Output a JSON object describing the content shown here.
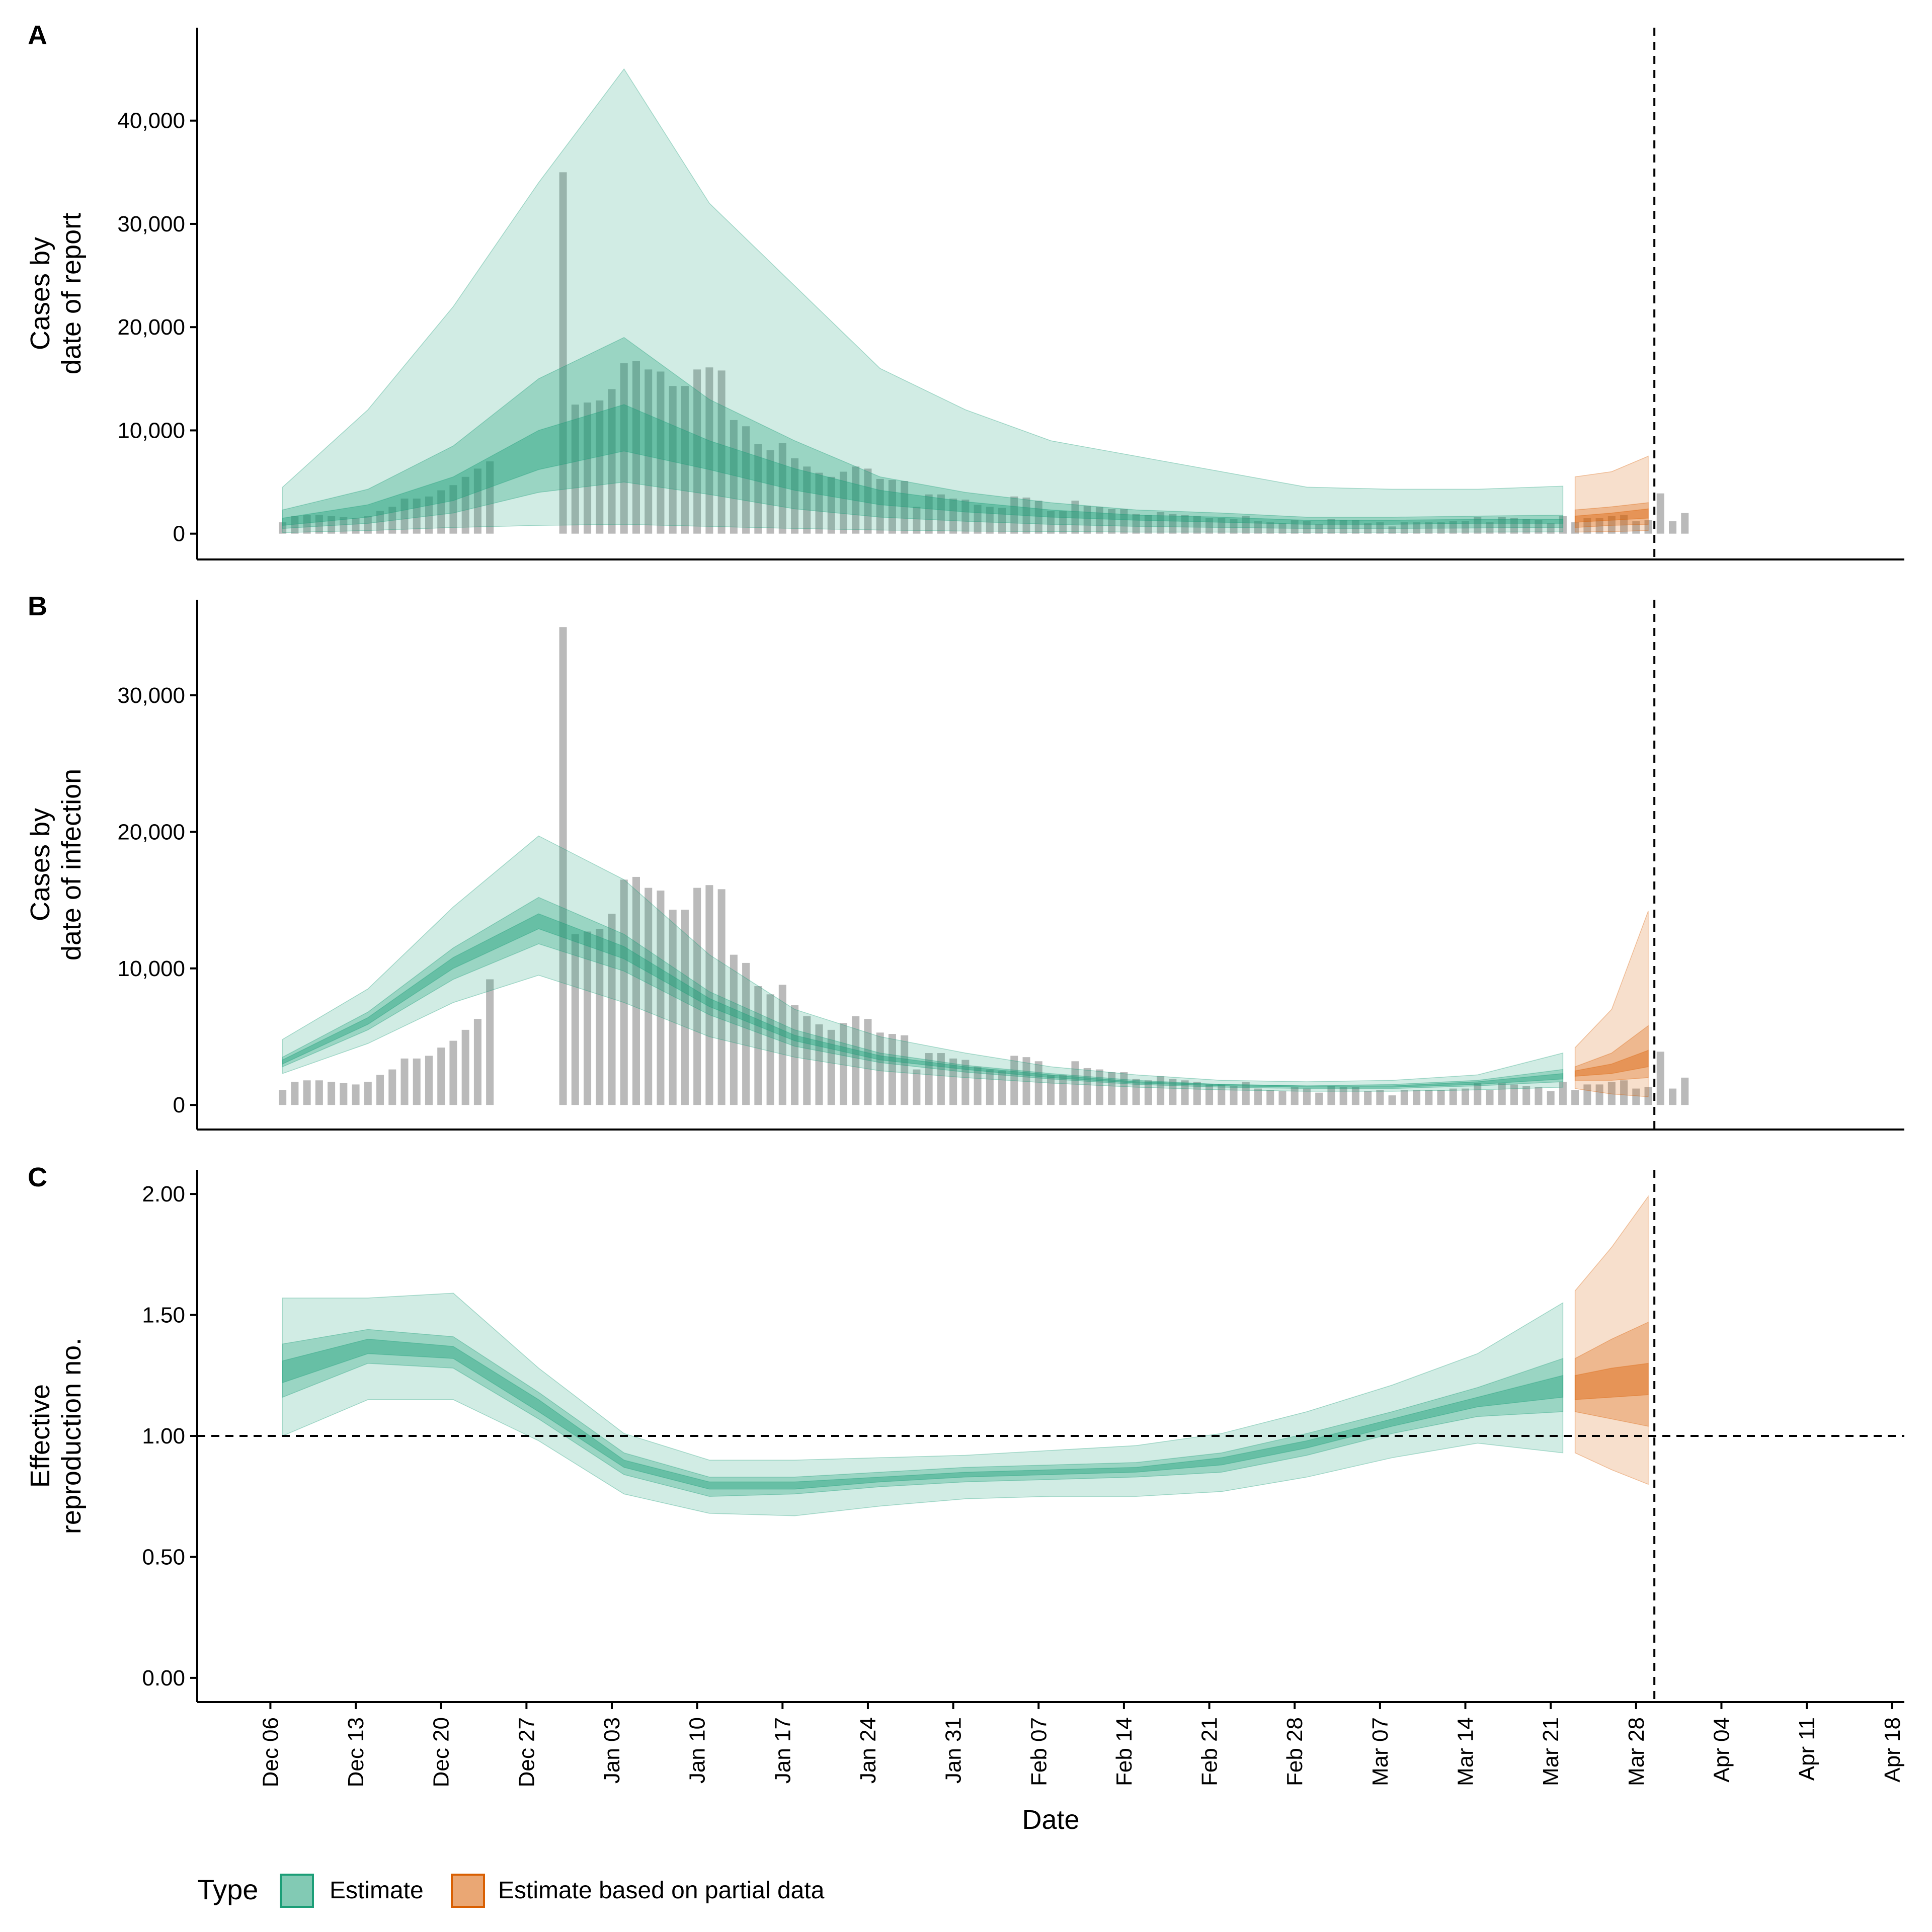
{
  "chart_data": {
    "type": "area",
    "x_axis": {
      "title": "Date",
      "tick_labels": [
        "Dec 06",
        "Dec 13",
        "Dec 20",
        "Dec 27",
        "Jan 03",
        "Jan 10",
        "Jan 17",
        "Jan 24",
        "Jan 31",
        "Feb 07",
        "Feb 14",
        "Feb 21",
        "Feb 28",
        "Mar 07",
        "Mar 14",
        "Mar 21",
        "Mar 28",
        "Apr 04",
        "Apr 11",
        "Apr 18"
      ],
      "range": [
        "Nov 30",
        "Apr 18"
      ],
      "forecast_marker": "Mar 28"
    },
    "legend": {
      "title": "Type",
      "position": "bottom-left",
      "entries": [
        {
          "label": "Estimate",
          "color": "#1b9e77"
        },
        {
          "label": "Estimate based on partial data",
          "color": "#d95f02"
        }
      ]
    },
    "colors": {
      "estimate": "#1b9e77",
      "partial": "#d95f02",
      "bars": "#a0a0a0"
    },
    "panels": [
      {
        "tag": "A",
        "ylabel": [
          "Cases by",
          "date of report"
        ],
        "ylim": [
          -2500,
          49000
        ],
        "y_ticks": [
          0,
          10000,
          20000,
          30000,
          40000
        ],
        "y_tick_labels": [
          "0",
          "10,000",
          "20,000",
          "30,000",
          "40,000"
        ],
        "bar_start_day": 7,
        "bars": [
          1100,
          1700,
          1800,
          1800,
          1700,
          1600,
          1500,
          1700,
          2200,
          2600,
          3400,
          3400,
          3600,
          4200,
          4700,
          5500,
          6300,
          7000,
          null,
          null,
          null,
          null,
          null,
          35000,
          12500,
          12700,
          12900,
          14000,
          16500,
          16700,
          15900,
          15700,
          14300,
          14300,
          15900,
          16100,
          15800,
          11000,
          10400,
          8700,
          8100,
          8800,
          7300,
          6500,
          5900,
          5500,
          6000,
          6500,
          6300,
          5300,
          5200,
          5100,
          2600,
          3800,
          3800,
          3400,
          3300,
          2800,
          2600,
          2500,
          3600,
          3500,
          3200,
          2200,
          2200,
          3200,
          2700,
          2600,
          2400,
          2400,
          1900,
          1800,
          2100,
          1900,
          1800,
          1700,
          1500,
          1500,
          1400,
          1700,
          1200,
          1100,
          1000,
          1300,
          1200,
          900,
          1400,
          1300,
          1300,
          1000,
          1100,
          700,
          1100,
          1100,
          1100,
          1100,
          1200,
          1200,
          1600,
          1100,
          1600,
          1500,
          1400,
          1300,
          1000,
          1700,
          1100,
          1500,
          1500,
          1700,
          1800,
          1200,
          1300,
          3900,
          1200,
          2000
        ],
        "estimate_days": [
          7,
          112
        ],
        "estimate_band_90": {
          "days": [
            7,
            14,
            21,
            28,
            35,
            42,
            49,
            56,
            63,
            70,
            77,
            84,
            91,
            98,
            105,
            112
          ],
          "lower": [
            100,
            300,
            600,
            800,
            900,
            700,
            500,
            350,
            250,
            200,
            150,
            150,
            130,
            130,
            150,
            170
          ],
          "upper": [
            4500,
            12000,
            22000,
            34000,
            45000,
            32000,
            24000,
            16000,
            12000,
            9000,
            7500,
            6000,
            4500,
            4300,
            4300,
            4600
          ]
        },
        "estimate_band_50": {
          "days": [
            7,
            14,
            21,
            28,
            35,
            42,
            49,
            56,
            63,
            70,
            77,
            84,
            91,
            98,
            105,
            112
          ],
          "lower": [
            500,
            1000,
            2000,
            4000,
            5000,
            3800,
            2400,
            1600,
            1200,
            900,
            700,
            600,
            500,
            500,
            550,
            600
          ],
          "upper": [
            2300,
            4300,
            8500,
            15000,
            19000,
            13000,
            9000,
            5500,
            4000,
            3000,
            2300,
            2000,
            1600,
            1600,
            1700,
            1800
          ]
        },
        "estimate_band_20": {
          "days": [
            7,
            14,
            21,
            28,
            35,
            42,
            49,
            56,
            63,
            70,
            77,
            84,
            91,
            98,
            105,
            112
          ],
          "lower": [
            800,
            1600,
            3200,
            6200,
            8000,
            6200,
            4200,
            2800,
            2100,
            1600,
            1300,
            1100,
            900,
            900,
            1000,
            1000
          ],
          "upper": [
            1500,
            2800,
            5500,
            10000,
            12500,
            9000,
            6300,
            4200,
            3100,
            2300,
            1800,
            1600,
            1300,
            1300,
            1400,
            1400
          ]
        },
        "partial_days": [
          113,
          119
        ],
        "partial_band_90": {
          "days": [
            113,
            116,
            119
          ],
          "lower": [
            150,
            200,
            300
          ],
          "upper": [
            5500,
            6000,
            7500
          ]
        },
        "partial_band_50": {
          "days": [
            113,
            116,
            119
          ],
          "lower": [
            600,
            800,
            900
          ],
          "upper": [
            2300,
            2600,
            3000
          ]
        },
        "partial_band_20": {
          "days": [
            113,
            116,
            119
          ],
          "lower": [
            1100,
            1300,
            1500
          ],
          "upper": [
            1700,
            2000,
            2400
          ]
        }
      },
      {
        "tag": "B",
        "ylabel": [
          "Cases by",
          "date of infection"
        ],
        "ylim": [
          -1800,
          37000
        ],
        "y_ticks": [
          0,
          10000,
          20000,
          30000
        ],
        "y_tick_labels": [
          "0",
          "10,000",
          "20,000",
          "30,000"
        ],
        "bar_start_day": 7,
        "bars": [
          1100,
          1700,
          1800,
          1800,
          1700,
          1600,
          1500,
          1700,
          2200,
          2600,
          3400,
          3400,
          3600,
          4200,
          4700,
          5500,
          6300,
          9200,
          null,
          null,
          null,
          null,
          null,
          35000,
          12500,
          12700,
          12900,
          14000,
          16500,
          16700,
          15900,
          15700,
          14300,
          14300,
          15900,
          16100,
          15800,
          11000,
          10400,
          8700,
          8100,
          8800,
          7300,
          6500,
          5900,
          5500,
          6000,
          6500,
          6300,
          5300,
          5200,
          5100,
          2600,
          3800,
          3800,
          3400,
          3300,
          2800,
          2600,
          2500,
          3600,
          3500,
          3200,
          2200,
          2200,
          3200,
          2700,
          2600,
          2400,
          2400,
          1900,
          1800,
          2100,
          1900,
          1800,
          1700,
          1500,
          1500,
          1400,
          1700,
          1200,
          1100,
          1000,
          1300,
          1200,
          900,
          1400,
          1300,
          1300,
          1000,
          1100,
          700,
          1100,
          1100,
          1100,
          1100,
          1200,
          1200,
          1600,
          1100,
          1600,
          1500,
          1400,
          1300,
          1000,
          1700,
          1100,
          1500,
          1500,
          1700,
          1800,
          1200,
          1300,
          3900,
          1200,
          2000
        ],
        "estimate_days": [
          7,
          112
        ],
        "estimate_band_90": {
          "days": [
            7,
            14,
            21,
            28,
            35,
            42,
            49,
            56,
            63,
            70,
            77,
            84,
            91,
            98,
            105,
            112
          ],
          "lower": [
            2300,
            4500,
            7500,
            9500,
            7500,
            5000,
            3500,
            2500,
            2000,
            1600,
            1300,
            1100,
            1000,
            1000,
            1100,
            1300
          ],
          "upper": [
            4800,
            8500,
            14500,
            19700,
            16500,
            11000,
            7000,
            5000,
            3800,
            2800,
            2200,
            1800,
            1700,
            1800,
            2200,
            3800
          ]
        },
        "estimate_band_50": {
          "days": [
            7,
            14,
            21,
            28,
            35,
            42,
            49,
            56,
            63,
            70,
            77,
            84,
            91,
            98,
            105,
            112
          ],
          "lower": [
            2800,
            5500,
            9200,
            11800,
            9800,
            6600,
            4300,
            3100,
            2400,
            1900,
            1500,
            1300,
            1200,
            1200,
            1400,
            1700
          ],
          "upper": [
            3500,
            6800,
            11500,
            15200,
            12500,
            8300,
            5500,
            3800,
            2900,
            2300,
            1800,
            1500,
            1400,
            1500,
            1800,
            2600
          ]
        },
        "estimate_band_20": {
          "days": [
            7,
            14,
            21,
            28,
            35,
            42,
            49,
            56,
            63,
            70,
            77,
            84,
            91,
            98,
            105,
            112
          ],
          "lower": [
            3000,
            5900,
            10000,
            12900,
            10700,
            7200,
            4700,
            3300,
            2600,
            2000,
            1600,
            1400,
            1300,
            1300,
            1500,
            1900
          ],
          "upper": [
            3300,
            6400,
            10800,
            14000,
            11600,
            7800,
            5100,
            3600,
            2800,
            2200,
            1700,
            1500,
            1400,
            1400,
            1700,
            2300
          ]
        },
        "partial_days": [
          113,
          119
        ],
        "partial_band_90": {
          "days": [
            113,
            116,
            119
          ],
          "lower": [
            1200,
            800,
            600
          ],
          "upper": [
            4200,
            7000,
            14200
          ]
        },
        "partial_band_50": {
          "days": [
            113,
            116,
            119
          ],
          "lower": [
            1800,
            1800,
            2000
          ],
          "upper": [
            2800,
            3800,
            5800
          ]
        },
        "partial_band_20": {
          "days": [
            113,
            116,
            119
          ],
          "lower": [
            2100,
            2300,
            2800
          ],
          "upper": [
            2500,
            3000,
            4000
          ]
        }
      },
      {
        "tag": "C",
        "ylabel": [
          "Effective",
          "reproduction no."
        ],
        "ylim": [
          -0.1,
          2.1
        ],
        "y_ticks": [
          0,
          0.5,
          1,
          1.5,
          2
        ],
        "y_tick_labels": [
          "0.00",
          "0.50",
          "1.00",
          "1.50",
          "2.00"
        ],
        "reference_line_y": 1,
        "estimate_days": [
          7,
          112
        ],
        "estimate_band_90": {
          "days": [
            7,
            14,
            21,
            28,
            35,
            42,
            49,
            56,
            63,
            70,
            77,
            84,
            91,
            98,
            105,
            112
          ],
          "lower": [
            1.0,
            1.15,
            1.15,
            0.98,
            0.76,
            0.68,
            0.67,
            0.71,
            0.74,
            0.75,
            0.75,
            0.77,
            0.83,
            0.91,
            0.97,
            0.93
          ],
          "upper": [
            1.57,
            1.57,
            1.59,
            1.28,
            1.01,
            0.9,
            0.9,
            0.91,
            0.92,
            0.94,
            0.96,
            1.01,
            1.1,
            1.21,
            1.34,
            1.55
          ]
        },
        "estimate_band_50": {
          "days": [
            7,
            14,
            21,
            28,
            35,
            42,
            49,
            56,
            63,
            70,
            77,
            84,
            91,
            98,
            105,
            112
          ],
          "lower": [
            1.16,
            1.3,
            1.28,
            1.07,
            0.84,
            0.75,
            0.76,
            0.79,
            0.81,
            0.82,
            0.83,
            0.85,
            0.92,
            1.01,
            1.08,
            1.1
          ],
          "upper": [
            1.38,
            1.44,
            1.41,
            1.18,
            0.93,
            0.83,
            0.83,
            0.85,
            0.87,
            0.88,
            0.89,
            0.93,
            1.01,
            1.1,
            1.2,
            1.32
          ]
        },
        "estimate_band_20": {
          "days": [
            7,
            14,
            21,
            28,
            35,
            42,
            49,
            56,
            63,
            70,
            77,
            84,
            91,
            98,
            105,
            112
          ],
          "lower": [
            1.22,
            1.34,
            1.32,
            1.1,
            0.87,
            0.78,
            0.78,
            0.81,
            0.83,
            0.84,
            0.85,
            0.88,
            0.95,
            1.04,
            1.12,
            1.16
          ],
          "upper": [
            1.31,
            1.4,
            1.37,
            1.15,
            0.9,
            0.81,
            0.81,
            0.83,
            0.85,
            0.86,
            0.87,
            0.91,
            0.98,
            1.07,
            1.16,
            1.25
          ]
        },
        "partial_days": [
          113,
          119
        ],
        "partial_band_90": {
          "days": [
            113,
            116,
            119
          ],
          "lower": [
            0.93,
            0.86,
            0.8
          ],
          "upper": [
            1.6,
            1.78,
            1.99
          ]
        },
        "partial_band_50": {
          "days": [
            113,
            116,
            119
          ],
          "lower": [
            1.1,
            1.07,
            1.04
          ],
          "upper": [
            1.32,
            1.4,
            1.47
          ]
        },
        "partial_band_20": {
          "days": [
            113,
            116,
            119
          ],
          "lower": [
            1.15,
            1.16,
            1.17
          ],
          "upper": [
            1.25,
            1.28,
            1.3
          ]
        }
      }
    ]
  }
}
